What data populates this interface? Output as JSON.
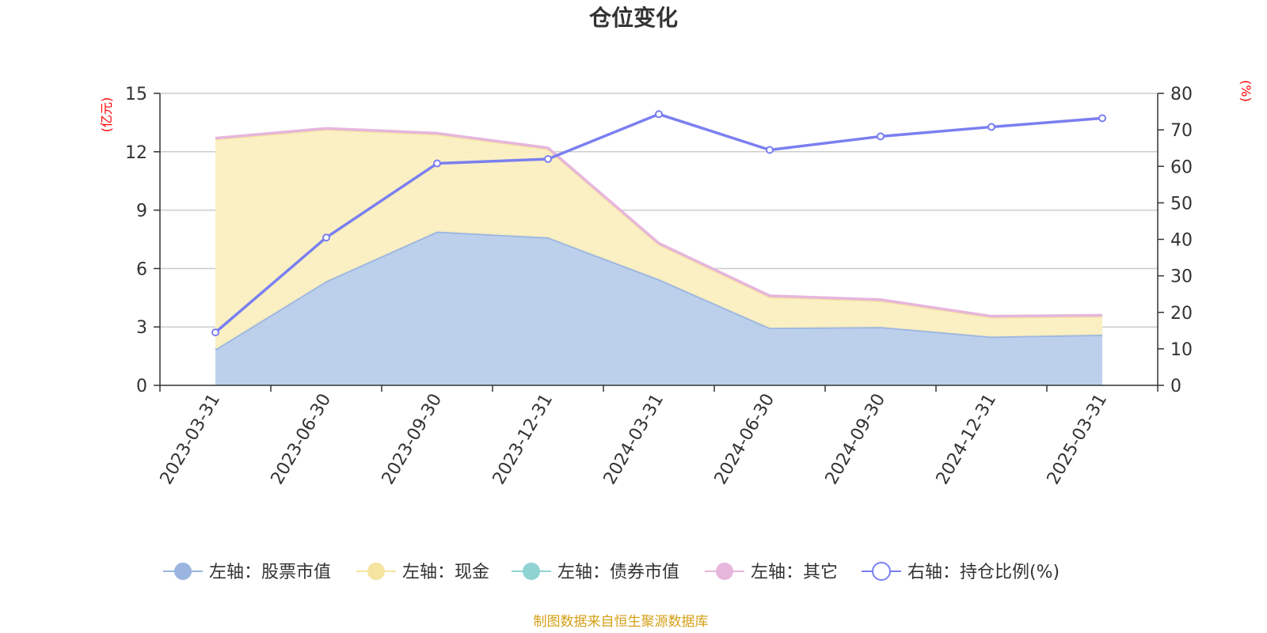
{
  "chart_data": {
    "type": "area",
    "title": "仓位变化",
    "left_axis_unit": "(亿元)",
    "right_axis_unit": "(%)",
    "categories": [
      "2023-03-31",
      "2023-06-30",
      "2023-09-30",
      "2023-12-31",
      "2024-03-31",
      "2024-06-30",
      "2024-09-30",
      "2024-12-31",
      "2025-03-31"
    ],
    "left_ylim": [
      0,
      15
    ],
    "left_ticks": [
      "0",
      "3",
      "6",
      "9",
      "12",
      "15"
    ],
    "right_ylim": [
      0,
      80
    ],
    "right_ticks": [
      "0",
      "10",
      "20",
      "30",
      "40",
      "50",
      "60",
      "70",
      "80"
    ],
    "grid": true,
    "stacked": true,
    "series": [
      {
        "name": "左轴：股票市值",
        "axis": "left",
        "color": "#9ab5e0",
        "fill": "#b8cdeb",
        "values": [
          1.85,
          5.35,
          7.9,
          7.6,
          5.45,
          2.95,
          3.0,
          2.5,
          2.6
        ]
      },
      {
        "name": "左轴：现金",
        "axis": "left",
        "color": "#f5e3a0",
        "fill": "#faefc0",
        "values": [
          10.8,
          7.8,
          5.0,
          4.55,
          1.8,
          1.6,
          1.35,
          1.0,
          0.95
        ]
      },
      {
        "name": "左轴：债券市值",
        "axis": "left",
        "color": "#8fd3d3",
        "fill": "#bfe8e8",
        "values": [
          0,
          0,
          0,
          0,
          0,
          0,
          0,
          0,
          0
        ]
      },
      {
        "name": "左轴：其它",
        "axis": "left",
        "color": "#e6b6dc",
        "fill": "#f3dcef",
        "values": [
          0.05,
          0.05,
          0.05,
          0.05,
          0.05,
          0.05,
          0.05,
          0.05,
          0.05
        ]
      },
      {
        "name": "右轴：持仓比例(%)",
        "axis": "right",
        "color": "#7b7ff0",
        "values": [
          14.5,
          40.5,
          60.8,
          62.0,
          74.3,
          64.5,
          68.2,
          70.8,
          73.2
        ]
      }
    ],
    "source": "制图数据来自恒生聚源数据库"
  }
}
